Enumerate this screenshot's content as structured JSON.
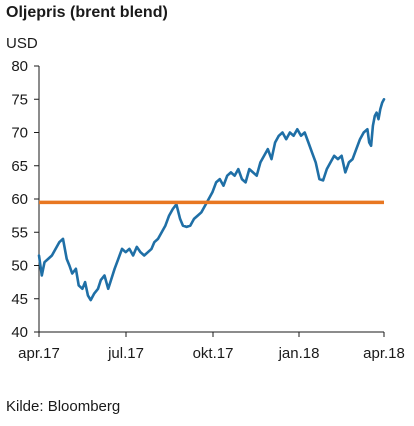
{
  "chart_data": {
    "type": "line",
    "title": "Oljepris (brent blend)",
    "ylabel": "USD",
    "xlabel": "",
    "source": "Kilde: Bloomberg",
    "ylim": [
      40,
      80
    ],
    "y_ticks": [
      40,
      45,
      50,
      55,
      60,
      65,
      70,
      75,
      80
    ],
    "x_ticks": [
      "apr.17",
      "jul.17",
      "okt.17",
      "jan.18",
      "apr.18"
    ],
    "xlim": [
      "2017-04-01",
      "2018-04-10"
    ],
    "grid": false,
    "legend": "none",
    "reference_line": {
      "y": 59.5,
      "color": "#e87722"
    },
    "series": [
      {
        "color": "#1f6fa6",
        "points": [
          [
            "2017-04-01",
            51.5
          ],
          [
            "2017-04-04",
            48.5
          ],
          [
            "2017-04-07",
            50.5
          ],
          [
            "2017-04-11",
            51.0
          ],
          [
            "2017-04-15",
            51.5
          ],
          [
            "2017-04-19",
            52.5
          ],
          [
            "2017-04-23",
            53.5
          ],
          [
            "2017-04-27",
            54.0
          ],
          [
            "2017-05-01",
            51.0
          ],
          [
            "2017-05-04",
            50.0
          ],
          [
            "2017-05-07",
            48.8
          ],
          [
            "2017-05-11",
            49.5
          ],
          [
            "2017-05-14",
            47.0
          ],
          [
            "2017-05-18",
            46.5
          ],
          [
            "2017-05-21",
            47.5
          ],
          [
            "2017-05-24",
            45.5
          ],
          [
            "2017-05-27",
            44.8
          ],
          [
            "2017-05-31",
            45.8
          ],
          [
            "2017-06-04",
            46.5
          ],
          [
            "2017-06-07",
            47.8
          ],
          [
            "2017-06-11",
            48.5
          ],
          [
            "2017-06-15",
            46.5
          ],
          [
            "2017-06-18",
            47.8
          ],
          [
            "2017-06-22",
            49.5
          ],
          [
            "2017-06-26",
            51.0
          ],
          [
            "2017-06-30",
            52.5
          ],
          [
            "2017-07-04",
            52.0
          ],
          [
            "2017-07-08",
            52.5
          ],
          [
            "2017-07-12",
            51.5
          ],
          [
            "2017-07-16",
            52.8
          ],
          [
            "2017-07-20",
            52.0
          ],
          [
            "2017-07-24",
            51.5
          ],
          [
            "2017-07-28",
            52.0
          ],
          [
            "2017-08-01",
            52.5
          ],
          [
            "2017-08-04",
            53.5
          ],
          [
            "2017-08-08",
            54.0
          ],
          [
            "2017-08-12",
            55.0
          ],
          [
            "2017-08-16",
            56.0
          ],
          [
            "2017-08-20",
            57.5
          ],
          [
            "2017-08-24",
            58.5
          ],
          [
            "2017-08-28",
            59.2
          ],
          [
            "2017-09-01",
            57.0
          ],
          [
            "2017-09-04",
            56.0
          ],
          [
            "2017-09-08",
            55.8
          ],
          [
            "2017-09-12",
            56.0
          ],
          [
            "2017-09-16",
            57.0
          ],
          [
            "2017-09-20",
            57.5
          ],
          [
            "2017-09-24",
            58.0
          ],
          [
            "2017-09-28",
            59.0
          ],
          [
            "2017-10-02",
            60.0
          ],
          [
            "2017-10-06",
            61.0
          ],
          [
            "2017-10-10",
            62.5
          ],
          [
            "2017-10-14",
            63.0
          ],
          [
            "2017-10-18",
            62.0
          ],
          [
            "2017-10-22",
            63.5
          ],
          [
            "2017-10-26",
            64.0
          ],
          [
            "2017-10-30",
            63.5
          ],
          [
            "2017-11-03",
            64.5
          ],
          [
            "2017-11-07",
            63.0
          ],
          [
            "2017-11-11",
            62.5
          ],
          [
            "2017-11-15",
            64.5
          ],
          [
            "2017-11-19",
            64.0
          ],
          [
            "2017-11-23",
            63.5
          ],
          [
            "2017-11-27",
            65.5
          ],
          [
            "2017-12-01",
            66.5
          ],
          [
            "2017-12-05",
            67.5
          ],
          [
            "2017-12-09",
            66.0
          ],
          [
            "2017-12-13",
            68.5
          ],
          [
            "2017-12-17",
            69.5
          ],
          [
            "2017-12-21",
            70.0
          ],
          [
            "2017-12-25",
            69.0
          ],
          [
            "2017-12-29",
            70.0
          ],
          [
            "2018-01-02",
            69.5
          ],
          [
            "2018-01-06",
            70.5
          ],
          [
            "2018-01-10",
            69.5
          ],
          [
            "2018-01-14",
            70.0
          ],
          [
            "2018-01-18",
            68.5
          ],
          [
            "2018-01-22",
            67.0
          ],
          [
            "2018-01-26",
            65.5
          ],
          [
            "2018-01-30",
            63.0
          ],
          [
            "2018-02-03",
            62.8
          ],
          [
            "2018-02-07",
            64.5
          ],
          [
            "2018-02-11",
            65.5
          ],
          [
            "2018-02-15",
            66.5
          ],
          [
            "2018-02-19",
            66.0
          ],
          [
            "2018-02-23",
            66.5
          ],
          [
            "2018-02-27",
            64.0
          ],
          [
            "2018-03-03",
            65.5
          ],
          [
            "2018-03-07",
            66.0
          ],
          [
            "2018-03-11",
            67.5
          ],
          [
            "2018-03-15",
            69.0
          ],
          [
            "2018-03-19",
            70.0
          ],
          [
            "2018-03-23",
            70.5
          ],
          [
            "2018-03-25",
            68.5
          ],
          [
            "2018-03-27",
            68.0
          ],
          [
            "2018-03-29",
            71.0
          ],
          [
            "2018-03-31",
            72.5
          ],
          [
            "2018-04-02",
            73.0
          ],
          [
            "2018-04-04",
            72.0
          ],
          [
            "2018-04-06",
            73.5
          ],
          [
            "2018-04-08",
            74.5
          ],
          [
            "2018-04-10",
            75.0
          ]
        ]
      }
    ]
  }
}
